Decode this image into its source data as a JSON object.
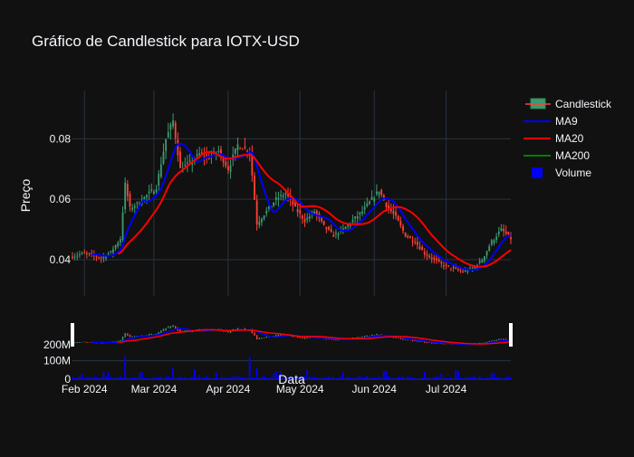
{
  "chart_data": {
    "type": "candlestick",
    "title": "Gráfico de Candlestick para IOTX-USD",
    "xlabel": "Data",
    "ylabel": "Preço",
    "ylim": [
      0.028,
      0.096
    ],
    "volume_ylim": [
      0,
      290000000
    ],
    "x_range": [
      "2024-01-27",
      "2024-07-28"
    ],
    "grid": true,
    "legend_position": "top-right",
    "y_ticks": [
      "0.04",
      "0.06",
      "0.08"
    ],
    "volume_ticks": [
      "0",
      "100M",
      "200M"
    ],
    "x_ticks": [
      {
        "date": "2024-02-01",
        "label": "Feb 2024"
      },
      {
        "date": "2024-03-01",
        "label": "Mar 2024"
      },
      {
        "date": "2024-04-01",
        "label": "Apr 2024"
      },
      {
        "date": "2024-05-01",
        "label": "May 2024"
      },
      {
        "date": "2024-06-01",
        "label": "Jun 2024"
      },
      {
        "date": "2024-07-01",
        "label": "Jul 2024"
      }
    ],
    "legend": [
      {
        "name": "Candlestick",
        "color": "#2e8b57",
        "symbol": "candle"
      },
      {
        "name": "MA9",
        "color": "#0000ff",
        "symbol": "line"
      },
      {
        "name": "MA20",
        "color": "#ff0000",
        "symbol": "line"
      },
      {
        "name": "MA200",
        "color": "#008000",
        "symbol": "line"
      },
      {
        "name": "Volume",
        "color": "#0000ff",
        "symbol": "square"
      }
    ],
    "colors": {
      "increasing": "#3d9970",
      "decreasing": "#ff4136",
      "ma9": "#0000ff",
      "ma20": "#ff0000",
      "ma200": "#008000",
      "volume": "#0000ff"
    },
    "close_path": [
      [
        "2024-01-27",
        0.041
      ],
      [
        "2024-01-31",
        0.042
      ],
      [
        "2024-02-04",
        0.0415
      ],
      [
        "2024-02-08",
        0.0405
      ],
      [
        "2024-02-12",
        0.0425
      ],
      [
        "2024-02-16",
        0.047
      ],
      [
        "2024-02-18",
        0.065
      ],
      [
        "2024-02-20",
        0.057
      ],
      [
        "2024-02-24",
        0.059
      ],
      [
        "2024-02-28",
        0.062
      ],
      [
        "2024-03-02",
        0.064
      ],
      [
        "2024-03-06",
        0.08
      ],
      [
        "2024-03-09",
        0.086
      ],
      [
        "2024-03-12",
        0.07
      ],
      [
        "2024-03-16",
        0.072
      ],
      [
        "2024-03-20",
        0.075
      ],
      [
        "2024-03-24",
        0.074
      ],
      [
        "2024-03-28",
        0.076
      ],
      [
        "2024-04-01",
        0.07
      ],
      [
        "2024-04-05",
        0.078
      ],
      [
        "2024-04-10",
        0.076
      ],
      [
        "2024-04-13",
        0.052
      ],
      [
        "2024-04-17",
        0.056
      ],
      [
        "2024-04-21",
        0.06
      ],
      [
        "2024-04-25",
        0.062
      ],
      [
        "2024-04-29",
        0.057
      ],
      [
        "2024-05-03",
        0.053
      ],
      [
        "2024-05-07",
        0.056
      ],
      [
        "2024-05-11",
        0.051
      ],
      [
        "2024-05-15",
        0.048
      ],
      [
        "2024-05-19",
        0.05
      ],
      [
        "2024-05-23",
        0.053
      ],
      [
        "2024-05-27",
        0.056
      ],
      [
        "2024-05-31",
        0.06
      ],
      [
        "2024-06-03",
        0.063
      ],
      [
        "2024-06-06",
        0.058
      ],
      [
        "2024-06-10",
        0.054
      ],
      [
        "2024-06-14",
        0.048
      ],
      [
        "2024-06-18",
        0.046
      ],
      [
        "2024-06-22",
        0.042
      ],
      [
        "2024-06-26",
        0.04
      ],
      [
        "2024-06-30",
        0.038
      ],
      [
        "2024-07-04",
        0.037
      ],
      [
        "2024-07-08",
        0.036
      ],
      [
        "2024-07-12",
        0.037
      ],
      [
        "2024-07-16",
        0.04
      ],
      [
        "2024-07-20",
        0.046
      ],
      [
        "2024-07-24",
        0.05
      ],
      [
        "2024-07-28",
        0.047
      ]
    ],
    "volume_spikes": [
      [
        "2024-02-18",
        125000000
      ],
      [
        "2024-03-09",
        65000000
      ],
      [
        "2024-04-10",
        120000000
      ],
      [
        "2024-04-13",
        60000000
      ],
      [
        "2024-06-06",
        45000000
      ],
      [
        "2024-06-22",
        40000000
      ],
      [
        "2024-07-20",
        35000000
      ]
    ]
  }
}
